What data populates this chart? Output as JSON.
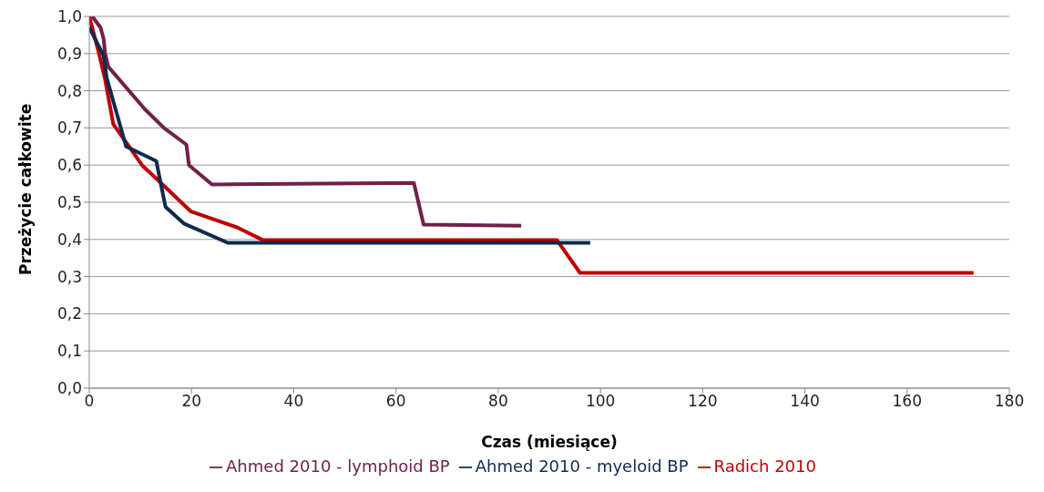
{
  "chart_data": {
    "type": "line",
    "xlabel": "Czas (miesiące)",
    "ylabel": "Przeżycie całkowite",
    "xlim": [
      0,
      180
    ],
    "xticks": [
      0,
      20,
      40,
      60,
      80,
      100,
      120,
      140,
      160,
      180
    ],
    "ylim": [
      0,
      1
    ],
    "yticks": [
      {
        "value": 0,
        "label": "0,0"
      },
      {
        "value": 0.1,
        "label": "0,1"
      },
      {
        "value": 0.2,
        "label": "0,2"
      },
      {
        "value": 0.3,
        "label": "0,3"
      },
      {
        "value": 0.4,
        "label": "0,4"
      },
      {
        "value": 0.5,
        "label": "0,5"
      },
      {
        "value": 0.6,
        "label": "0,6"
      },
      {
        "value": 0.7,
        "label": "0,7"
      },
      {
        "value": 0.8,
        "label": "0,8"
      },
      {
        "value": 0.9,
        "label": "0,9"
      },
      {
        "value": 1,
        "label": "1,0"
      }
    ],
    "grid": "y",
    "legend": "bottom",
    "marker": "none",
    "line_style": "solid",
    "series": [
      {
        "name": "Radich 2010",
        "color": "#c00000",
        "x": [
          0,
          1.9,
          3.1,
          4.7,
          7.8,
          10.3,
          13.4,
          19.9,
          29,
          34,
          91.5,
          96,
          173
        ],
        "values": [
          1.0,
          0.9,
          0.83,
          0.71,
          0.65,
          0.6,
          0.56,
          0.475,
          0.432,
          0.398,
          0.398,
          0.31,
          0.31
        ]
      },
      {
        "name": "Ahmed 2010 - lymphoid BP",
        "color": "#722048",
        "x": [
          0.6,
          2.2,
          2.8,
          3.1,
          3.7,
          10.9,
          14.6,
          19,
          19.5,
          24,
          63.5,
          65.4,
          84.5
        ],
        "values": [
          1.0,
          0.97,
          0.94,
          0.9,
          0.865,
          0.75,
          0.7,
          0.655,
          0.6,
          0.548,
          0.552,
          0.44,
          0.437
        ]
      },
      {
        "name": "Ahmed 2010 - myeloid BP",
        "color": "#0f2a4f",
        "x": [
          0,
          2.8,
          3.4,
          7.2,
          13.1,
          14.9,
          18.6,
          27.1,
          98
        ],
        "values": [
          0.97,
          0.895,
          0.835,
          0.65,
          0.611,
          0.488,
          0.442,
          0.391,
          0.391
        ]
      }
    ]
  }
}
